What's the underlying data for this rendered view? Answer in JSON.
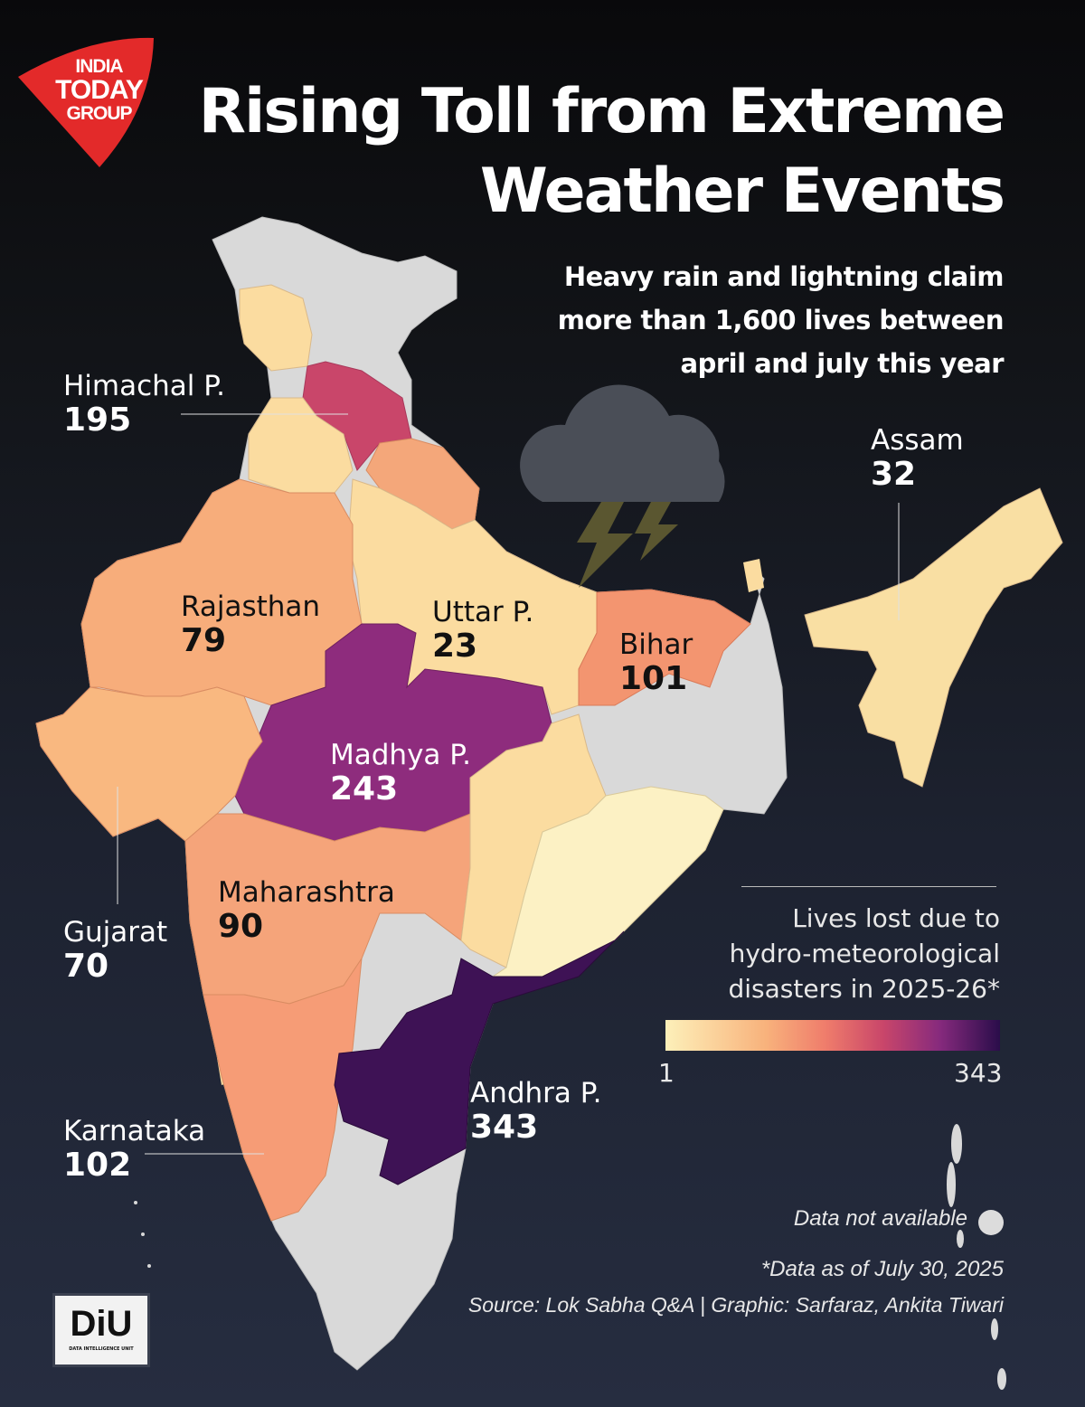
{
  "branding": {
    "logo_text": [
      "INDIA",
      "TODAY",
      "GROUP"
    ],
    "logo_color": "#e32a2a",
    "diu_logo": "DiU",
    "diu_subtitle": "DATA INTELLIGENCE UNIT"
  },
  "title": {
    "line1": "Rising Toll from Extreme",
    "line2": "Weather Events"
  },
  "subtitle": {
    "line1": "Heavy rain and lightning claim",
    "line2": "more than 1,600 lives between",
    "line3": "april and july this year"
  },
  "states": [
    {
      "name": "Himachal P.",
      "value": "195",
      "color": "#c9466a"
    },
    {
      "name": "Rajasthan",
      "value": "79",
      "color": "#f7ad7b"
    },
    {
      "name": "Uttar P.",
      "value": "23",
      "color": "#fbdca0"
    },
    {
      "name": "Bihar",
      "value": "101",
      "color": "#f39570"
    },
    {
      "name": "Assam",
      "value": "32",
      "color": "#f9dfa3"
    },
    {
      "name": "Madhya P.",
      "value": "243",
      "color": "#8e2c7d"
    },
    {
      "name": "Gujarat",
      "value": "70",
      "color": "#f9b880"
    },
    {
      "name": "Maharashtra",
      "value": "90",
      "color": "#f5a47a"
    },
    {
      "name": "Andhra P.",
      "value": "343",
      "color": "#3e1255"
    },
    {
      "name": "Karnataka",
      "value": "102",
      "color": "#f69c76"
    }
  ],
  "colors": {
    "no_data": "#d9d9d9",
    "light": "#fbdca0",
    "pale": "#fcf1c4",
    "orange": "#f4a77a"
  },
  "legend": {
    "title_line1": "Lives lost due to",
    "title_line2": "hydro-meteorological",
    "title_line3": "disasters in 2025-26*",
    "min": "1",
    "max": "343",
    "no_data_label": "Data not available"
  },
  "footer": {
    "note": "*Data as of July 30, 2025",
    "source": "Source: Lok Sabha Q&A | Graphic: Sarfaraz, Ankita Tiwari"
  }
}
